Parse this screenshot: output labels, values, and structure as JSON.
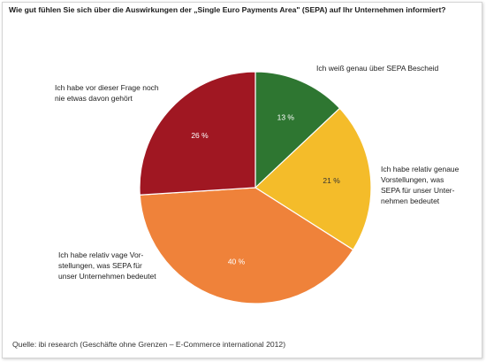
{
  "chart_data": {
    "type": "pie",
    "title": "Wie gut fühlen Sie sich über die Auswirkungen der „Single Euro Payments Area\" (SEPA) auf Ihr Unternehmen informiert?",
    "source": "Quelle: ibi research (Geschäfte ohne Grenzen – E-Commerce international 2012)",
    "slices": [
      {
        "label_lines": [
          "Ich weiß genau über SEPA Bescheid"
        ],
        "value": 13,
        "value_label": "13 %",
        "color": "#2e7631"
      },
      {
        "label_lines": [
          "Ich habe relativ genaue",
          "Vorstellungen, was",
          "SEPA für unser Unter-",
          "nehmen bedeutet"
        ],
        "value": 21,
        "value_label": "21 %",
        "color": "#f4bc2a"
      },
      {
        "label_lines": [
          "Ich habe relativ vage Vor-",
          "stellungen, was SEPA für",
          "unser Unternehmen bedeutet"
        ],
        "value": 40,
        "value_label": "40 %",
        "color": "#ef823a"
      },
      {
        "label_lines": [
          "Ich habe vor dieser Frage noch",
          "nie etwas davon gehört"
        ],
        "value": 26,
        "value_label": "26 %",
        "color": "#a01722"
      }
    ]
  }
}
